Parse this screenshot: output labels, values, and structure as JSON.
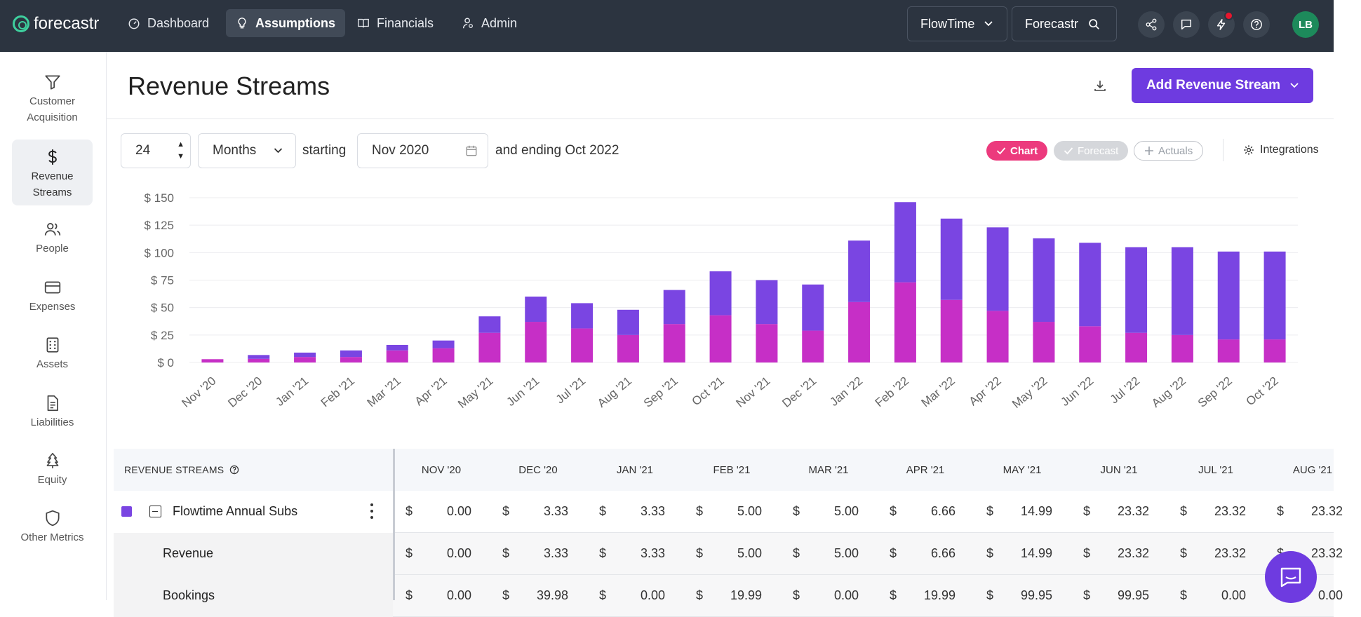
{
  "app": {
    "logo_text": "forecastr",
    "nav": [
      {
        "label": "Dashboard",
        "icon": "gauge-icon"
      },
      {
        "label": "Assumptions",
        "icon": "lightbulb-icon"
      },
      {
        "label": "Financials",
        "icon": "book-icon"
      },
      {
        "label": "Admin",
        "icon": "user-icon"
      }
    ],
    "company_select": "FlowTime",
    "search_box": "Forecastr",
    "avatar_initials": "LB"
  },
  "sidebar": {
    "items": [
      {
        "label": "Customer Acquisition",
        "icon": "funnel-icon"
      },
      {
        "label": "Revenue Streams",
        "icon": "dollar-icon"
      },
      {
        "label": "People",
        "icon": "people-icon"
      },
      {
        "label": "Expenses",
        "icon": "card-icon"
      },
      {
        "label": "Assets",
        "icon": "building-icon"
      },
      {
        "label": "Liabilities",
        "icon": "document-icon"
      },
      {
        "label": "Equity",
        "icon": "tree-icon"
      },
      {
        "label": "Other Metrics",
        "icon": "shield-icon"
      }
    ]
  },
  "header": {
    "title": "Revenue Streams",
    "add_button": "Add Revenue Stream"
  },
  "controls": {
    "period_count": "24",
    "period_unit": "Months",
    "starting_label": "starting",
    "start_date": "Nov 2020",
    "ending_text": "and ending Oct 2022",
    "toggle_chart": "Chart",
    "toggle_forecast": "Forecast",
    "toggle_actuals": "Actuals",
    "integrations": "Integrations"
  },
  "colors": {
    "bookings": "#7a45e2",
    "revenue": "#c62fc6",
    "accent": "#6e3be0",
    "chart_pill": "#ec3a7d"
  },
  "chart_data": {
    "type": "bar",
    "stacked": true,
    "y_prefix": "$ ",
    "ylim": [
      0,
      150
    ],
    "yticks": [
      0,
      25,
      50,
      75,
      100,
      125,
      150
    ],
    "categories": [
      "Nov '20",
      "Dec '20",
      "Jan '21",
      "Feb '21",
      "Mar '21",
      "Apr '21",
      "May '21",
      "Jun '21",
      "Jul '21",
      "Aug '21",
      "Sep '21",
      "Oct '21",
      "Nov '21",
      "Dec '21",
      "Jan '22",
      "Feb '22",
      "Mar '22",
      "Apr '22",
      "May '22",
      "Jun '22",
      "Jul '22",
      "Aug '22",
      "Sep '22",
      "Oct '22"
    ],
    "series": [
      {
        "name": "Revenue",
        "color": "#c62fc6",
        "values": [
          3,
          3.3,
          5,
          5,
          11,
          13,
          27,
          37,
          31,
          25,
          35,
          43,
          35,
          29,
          55,
          73,
          57,
          47,
          37,
          33,
          27,
          25,
          21,
          21
        ]
      },
      {
        "name": "Bookings",
        "color": "#7a45e2",
        "values": [
          0,
          3.5,
          4,
          6,
          5,
          7,
          15,
          23,
          23,
          23,
          31,
          40,
          40,
          42,
          56,
          73,
          74,
          76,
          76,
          76,
          78,
          80,
          80,
          80
        ]
      }
    ]
  },
  "table": {
    "header_label": "REVENUE STREAMS",
    "columns": [
      "NOV '20",
      "DEC '20",
      "JAN '21",
      "FEB '21",
      "MAR '21",
      "APR '21",
      "MAY '21",
      "JUN '21",
      "JUL '21",
      "AUG '21"
    ],
    "rows": [
      {
        "name": "Flowtime Annual Subs",
        "values": [
          "0.00",
          "3.33",
          "3.33",
          "5.00",
          "5.00",
          "6.66",
          "14.99",
          "23.32",
          "23.32",
          "23.32"
        ]
      },
      {
        "name": "Revenue",
        "values": [
          "0.00",
          "3.33",
          "3.33",
          "5.00",
          "5.00",
          "6.66",
          "14.99",
          "23.32",
          "23.32",
          "23.32"
        ]
      },
      {
        "name": "Bookings",
        "values": [
          "0.00",
          "39.98",
          "0.00",
          "19.99",
          "0.00",
          "19.99",
          "99.95",
          "99.95",
          "0.00",
          "0.00"
        ]
      }
    ],
    "currency": "$"
  }
}
